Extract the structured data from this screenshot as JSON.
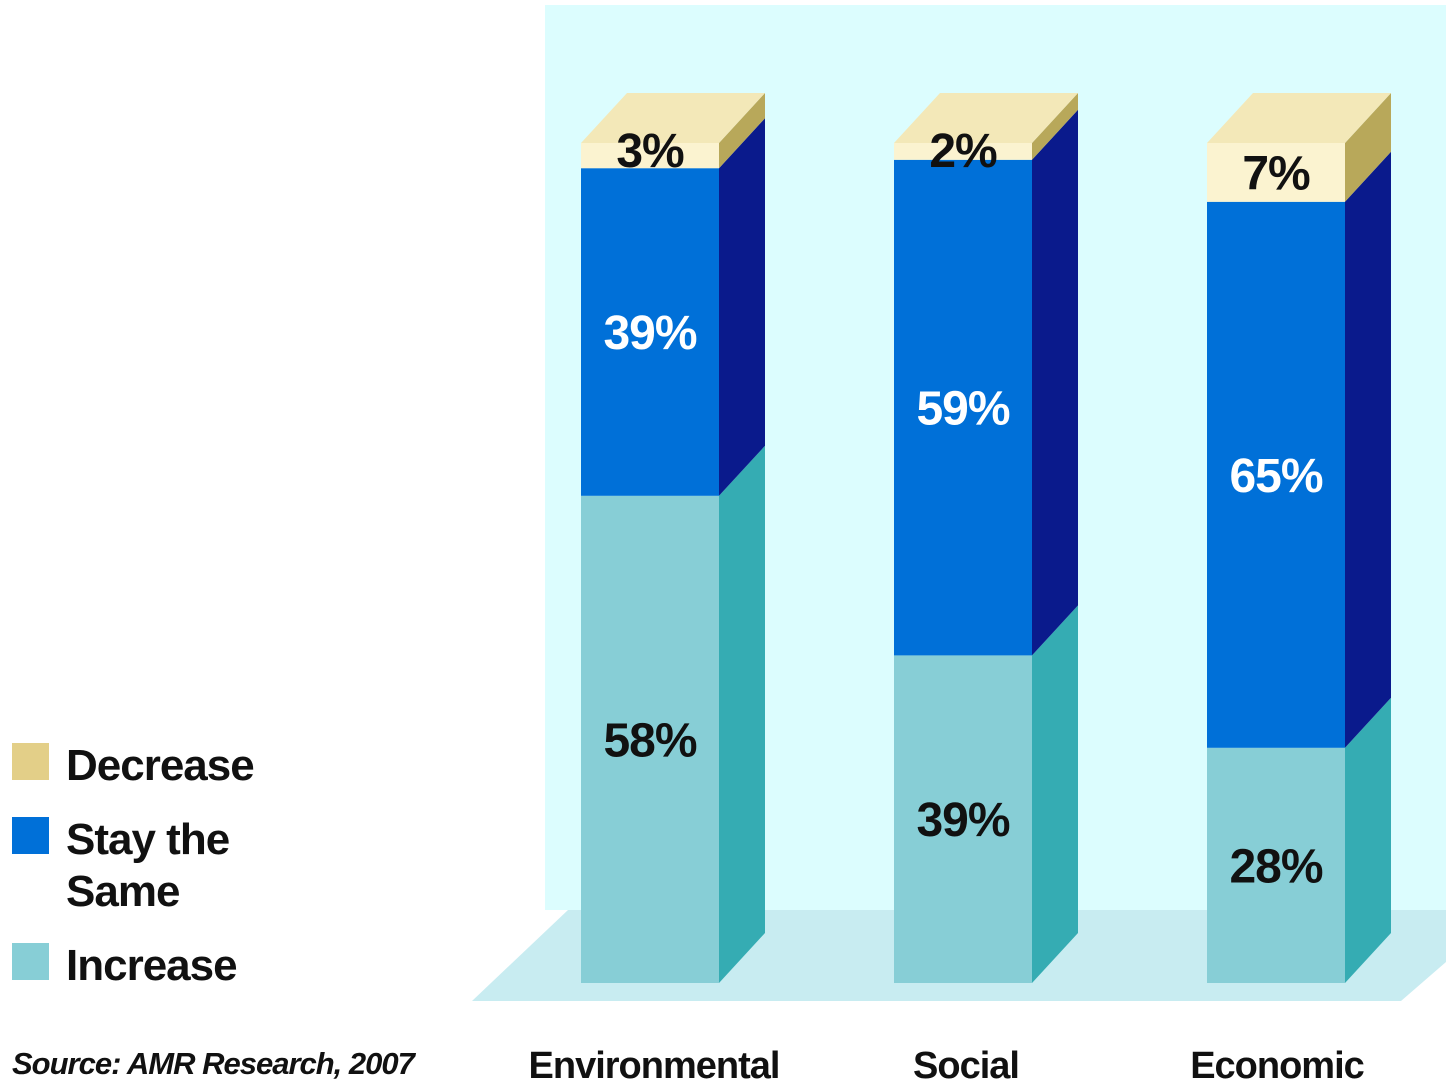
{
  "chart_data": {
    "type": "bar",
    "stacked": true,
    "style": "3d-columns",
    "categories": [
      "Environmental",
      "Social",
      "Economic"
    ],
    "series": [
      {
        "name": "Increase",
        "values": [
          58,
          39,
          28
        ],
        "labels": [
          "58%",
          "39%",
          "28%"
        ]
      },
      {
        "name": "Stay the Same",
        "values": [
          39,
          59,
          65
        ],
        "labels": [
          "39%",
          "59%",
          "65%"
        ]
      },
      {
        "name": "Decrease",
        "values": [
          3,
          2,
          7
        ],
        "labels": [
          "3%",
          "2%",
          "7%"
        ]
      }
    ],
    "ylim": [
      0,
      100
    ],
    "legend": {
      "position": "bottom-left",
      "items": [
        {
          "label": "Decrease",
          "color": "#e3cf88"
        },
        {
          "label": "Stay the Same",
          "color": "#0070d8"
        },
        {
          "label": "Increase",
          "color": "#87ced6"
        }
      ]
    },
    "colors": {
      "increase": {
        "front": "#87ced6",
        "side": "#35acb3",
        "text": "#111111"
      },
      "stay": {
        "front": "#0070d8",
        "side": "#0a1a8c",
        "text": "#ffffff"
      },
      "decrease": {
        "front": "#fbf3d0",
        "side": "#b8a85a",
        "top": "#f3e8b8",
        "text": "#111111"
      },
      "back_wall": "#dcfdfe",
      "floor": "#c8ecf1"
    }
  },
  "source": "Source: AMR Research, 2007"
}
